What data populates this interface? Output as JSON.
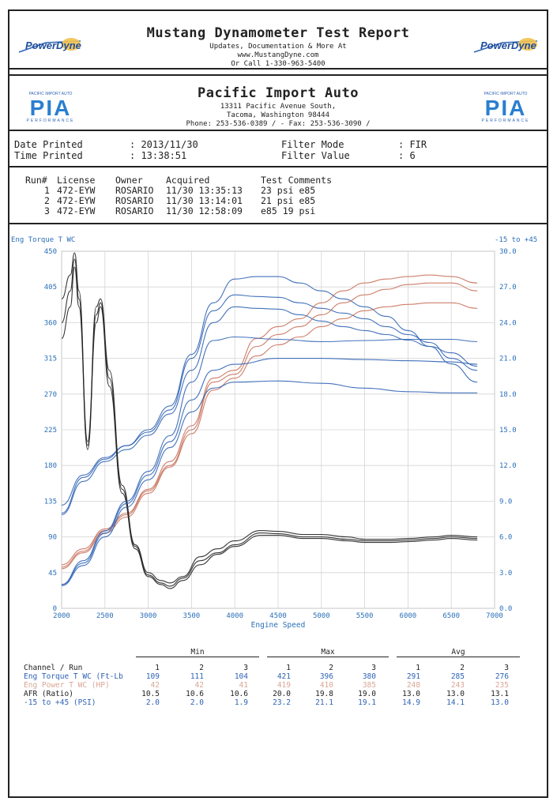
{
  "header": {
    "title": "Mustang Dynamometer Test Report",
    "line1": "Updates, Documentation & More At",
    "line2": "www.MustangDyne.com",
    "line3": "Or Call 1-330-963-5400",
    "logo_left": "PowerDyne",
    "logo_right": "PowerDyne"
  },
  "shop": {
    "name": "Pacific Import Auto",
    "address1": "13311 Pacific Avenue South,",
    "address2": "Tacoma, Washington  98444",
    "phone": "Phone: 253-536-0389 /  - Fax: 253-536-3090 /",
    "logo_left": "PIA",
    "logo_right": "PIA",
    "logo_sub": "PERFORMANCE",
    "logo_top": "PACIFIC IMPORT AUTO"
  },
  "meta": {
    "date_label": "Date Printed",
    "date_value": ": 2013/11/30",
    "time_label": "Time Printed",
    "time_value": ": 13:38:51",
    "filter_mode_label": "Filter Mode",
    "filter_mode_value": ": FIR",
    "filter_value_label": "Filter Value",
    "filter_value_value": ": 6"
  },
  "runs": {
    "headers": [
      "Run#",
      "License",
      "Owner",
      "Acquired",
      "Test Comments"
    ],
    "rows": [
      [
        "1",
        "472-EYW",
        "ROSARIO",
        "11/30 13:35:13",
        "23 psi e85"
      ],
      [
        "2",
        "472-EYW",
        "ROSARIO",
        "11/30 13:14:01",
        "21 psi e85"
      ],
      [
        "3",
        "472-EYW",
        "ROSARIO",
        "11/30 12:58:09",
        "e85 19 psi"
      ]
    ]
  },
  "chart_data": {
    "type": "line",
    "left_axis_title": "Eng Torque T WC",
    "right_axis_title": "-15 to +45",
    "xlabel": "Engine Speed",
    "xlim": [
      2000,
      7000
    ],
    "ylim_left": [
      0,
      450
    ],
    "ylim_right": [
      0,
      30
    ],
    "x_ticks": [
      "2000",
      "2500",
      "3000",
      "3500",
      "4000",
      "4500",
      "5000",
      "5500",
      "6000",
      "6500",
      "7000"
    ],
    "y_ticks_left": [
      "0",
      "45",
      "90",
      "135",
      "180",
      "225",
      "270",
      "315",
      "360",
      "405",
      "450"
    ],
    "y_ticks_right": [
      "0.0",
      "3.0",
      "6.0",
      "9.0",
      "12.0",
      "15.0",
      "18.0",
      "21.0",
      "24.0",
      "27.0",
      "30.0"
    ],
    "grid": true,
    "colors": {
      "torque": "#2f63b5",
      "power": "#c8705a",
      "afr": "#222222",
      "boost": "#2f63b5",
      "axis": "#2a6fb8"
    },
    "series": [
      {
        "group": "torque",
        "axis": "left",
        "x": [
          2000,
          2250,
          2500,
          2750,
          3000,
          3250,
          3500,
          3750,
          4000,
          4250,
          4500,
          4750,
          5000,
          5250,
          5500,
          5750,
          6000,
          6250,
          6500,
          6800
        ],
        "values": [
          130,
          168,
          190,
          205,
          225,
          255,
          320,
          385,
          415,
          418,
          418,
          410,
          400,
          390,
          380,
          368,
          350,
          330,
          308,
          285
        ]
      },
      {
        "group": "torque",
        "axis": "left",
        "x": [
          2000,
          2250,
          2500,
          2750,
          3000,
          3250,
          3500,
          3750,
          4000,
          4250,
          4500,
          4750,
          5000,
          5250,
          5500,
          5750,
          6000,
          6250,
          6500,
          6800
        ],
        "values": [
          120,
          165,
          188,
          205,
          222,
          250,
          315,
          375,
          395,
          393,
          392,
          385,
          378,
          372,
          365,
          355,
          345,
          335,
          315,
          300
        ]
      },
      {
        "group": "torque",
        "axis": "left",
        "x": [
          2000,
          2250,
          2500,
          2750,
          3000,
          3250,
          3500,
          3750,
          4000,
          4250,
          4500,
          4750,
          5000,
          5250,
          5500,
          5750,
          6000,
          6250,
          6500,
          6800
        ],
        "values": [
          118,
          160,
          185,
          200,
          218,
          245,
          300,
          360,
          380,
          378,
          377,
          370,
          362,
          355,
          350,
          345,
          338,
          330,
          322,
          305
        ]
      },
      {
        "group": "power",
        "axis": "left",
        "x": [
          2000,
          2250,
          2500,
          2750,
          3000,
          3250,
          3500,
          3750,
          4000,
          4250,
          4500,
          4750,
          5000,
          5250,
          5500,
          5750,
          6000,
          6250,
          6500,
          6800
        ],
        "values": [
          55,
          75,
          100,
          120,
          150,
          185,
          230,
          290,
          300,
          340,
          355,
          365,
          385,
          400,
          410,
          415,
          418,
          420,
          418,
          410
        ]
      },
      {
        "group": "power",
        "axis": "left",
        "x": [
          2000,
          2250,
          2500,
          2750,
          3000,
          3250,
          3500,
          3750,
          4000,
          4250,
          4500,
          4750,
          5000,
          5250,
          5500,
          5750,
          6000,
          6250,
          6500,
          6800
        ],
        "values": [
          52,
          72,
          98,
          118,
          148,
          180,
          225,
          285,
          295,
          330,
          345,
          355,
          370,
          385,
          395,
          402,
          408,
          410,
          410,
          400
        ]
      },
      {
        "group": "power",
        "axis": "left",
        "x": [
          2000,
          2250,
          2500,
          2750,
          3000,
          3250,
          3500,
          3750,
          4000,
          4250,
          4500,
          4750,
          5000,
          5250,
          5500,
          5750,
          6000,
          6250,
          6500,
          6800
        ],
        "values": [
          50,
          70,
          95,
          115,
          145,
          178,
          220,
          275,
          290,
          318,
          332,
          342,
          355,
          365,
          375,
          380,
          383,
          385,
          385,
          378
        ]
      },
      {
        "group": "afr",
        "axis": "left",
        "x": [
          2000,
          2100,
          2150,
          2200,
          2300,
          2400,
          2450,
          2550,
          2700,
          2850,
          3000,
          3150,
          3250,
          3400,
          3600,
          3800,
          4000,
          4300,
          4500,
          4800,
          5000,
          5300,
          5500,
          5800,
          6000,
          6300,
          6500,
          6800
        ],
        "values": [
          390,
          420,
          448,
          400,
          200,
          380,
          390,
          300,
          155,
          80,
          45,
          35,
          32,
          40,
          65,
          75,
          85,
          98,
          97,
          93,
          93,
          90,
          87,
          87,
          88,
          90,
          92,
          90
        ]
      },
      {
        "group": "afr",
        "axis": "left",
        "x": [
          2000,
          2100,
          2150,
          2200,
          2300,
          2400,
          2450,
          2550,
          2700,
          2850,
          3000,
          3150,
          3250,
          3400,
          3600,
          3800,
          4000,
          4300,
          4500,
          4800,
          5000,
          5300,
          5500,
          5800,
          6000,
          6300,
          6500,
          6800
        ],
        "values": [
          360,
          400,
          440,
          390,
          210,
          370,
          385,
          290,
          150,
          78,
          42,
          32,
          28,
          38,
          60,
          70,
          80,
          95,
          94,
          90,
          90,
          87,
          85,
          85,
          86,
          88,
          90,
          88
        ]
      },
      {
        "group": "afr",
        "axis": "left",
        "x": [
          2000,
          2100,
          2150,
          2200,
          2300,
          2400,
          2450,
          2550,
          2700,
          2850,
          3000,
          3150,
          3250,
          3400,
          3600,
          3800,
          4000,
          4300,
          4500,
          4800,
          5000,
          5300,
          5500,
          5800,
          6000,
          6300,
          6500,
          6800
        ],
        "values": [
          340,
          380,
          430,
          380,
          205,
          360,
          380,
          280,
          145,
          75,
          40,
          30,
          25,
          35,
          55,
          68,
          78,
          92,
          92,
          88,
          88,
          85,
          83,
          83,
          84,
          86,
          88,
          86
        ]
      },
      {
        "group": "boost",
        "axis": "right",
        "x": [
          2000,
          2250,
          2500,
          2750,
          3000,
          3250,
          3500,
          3750,
          4000,
          4500,
          5000,
          5500,
          6000,
          6500,
          6800
        ],
        "values": [
          2.0,
          4.0,
          6.5,
          9.0,
          11.5,
          14.5,
          19.0,
          22.5,
          22.8,
          22.6,
          22.4,
          22.5,
          22.6,
          22.6,
          22.4
        ]
      },
      {
        "group": "boost",
        "axis": "right",
        "x": [
          2000,
          2250,
          2500,
          2750,
          3000,
          3250,
          3500,
          3750,
          4000,
          4500,
          5000,
          5500,
          6000,
          6500,
          6800
        ],
        "values": [
          2.0,
          3.8,
          6.3,
          8.8,
          11.2,
          14.0,
          17.5,
          20.0,
          20.5,
          21.0,
          21.0,
          20.9,
          20.8,
          20.7,
          20.5
        ]
      },
      {
        "group": "boost",
        "axis": "right",
        "x": [
          2000,
          2250,
          2500,
          2750,
          3000,
          3250,
          3500,
          3750,
          4000,
          4500,
          5000,
          5500,
          6000,
          6500,
          6800
        ],
        "values": [
          1.9,
          3.6,
          6.0,
          8.5,
          10.8,
          13.5,
          16.5,
          18.5,
          19.0,
          19.1,
          18.9,
          18.5,
          18.2,
          18.1,
          18.1
        ]
      }
    ]
  },
  "stats": {
    "group_min": "Min",
    "group_max": "Max",
    "group_avg": "Avg",
    "header_label": "Channel / Run",
    "run_numbers": [
      "1",
      "2",
      "3",
      "1",
      "2",
      "3",
      "1",
      "2",
      "3"
    ],
    "rows": [
      {
        "label": "Eng Torque T WC (Ft-Lb",
        "values": [
          "109",
          "111",
          "104",
          "421",
          "396",
          "380",
          "291",
          "285",
          "276"
        ]
      },
      {
        "label": "Eng Power T WC (HP)",
        "values": [
          "42",
          "42",
          "41",
          "419",
          "410",
          "385",
          "248",
          "243",
          "235"
        ]
      },
      {
        "label": "AFR (Ratio)",
        "values": [
          "10.5",
          "10.6",
          "10.6",
          "20.0",
          "19.8",
          "19.0",
          "13.0",
          "13.0",
          "13.1"
        ]
      },
      {
        "label": "-15 to +45 (PSI)",
        "values": [
          "2.0",
          "2.0",
          "1.9",
          "23.2",
          "21.1",
          "19.1",
          "14.9",
          "14.1",
          "13.0"
        ]
      }
    ]
  }
}
